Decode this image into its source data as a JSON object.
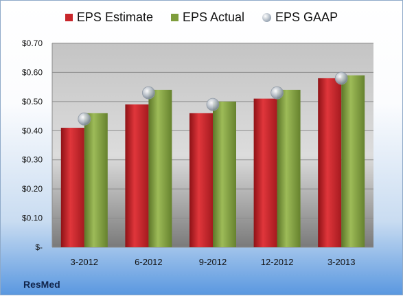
{
  "chart_data": {
    "type": "bar",
    "categories": [
      "3-2012",
      "6-2012",
      "9-2012",
      "12-2012",
      "3-2013"
    ],
    "series": [
      {
        "name": "EPS Estimate",
        "type": "bar",
        "color": "#c8262b",
        "values": [
          0.41,
          0.49,
          0.46,
          0.51,
          0.58
        ]
      },
      {
        "name": "EPS Actual",
        "type": "bar",
        "color": "#7e9d3c",
        "values": [
          0.46,
          0.54,
          0.5,
          0.54,
          0.59
        ]
      },
      {
        "name": "EPS GAAP",
        "type": "marker",
        "color": "#a6b0bd",
        "values": [
          0.44,
          0.53,
          0.49,
          0.53,
          0.58
        ]
      }
    ],
    "ylim": [
      0,
      0.7
    ],
    "yticks": [
      0,
      0.1,
      0.2,
      0.3,
      0.4,
      0.5,
      0.6,
      0.7
    ],
    "ytick_labels": [
      "$-",
      "$0.10",
      "$0.20",
      "$0.30",
      "$0.40",
      "$0.50",
      "$0.60",
      "$0.70"
    ],
    "grid": true,
    "legend": "top"
  },
  "footer": {
    "brand": "ResMed"
  }
}
